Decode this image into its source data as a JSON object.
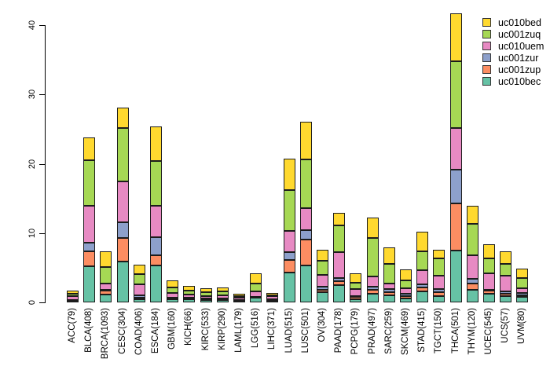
{
  "figure": {
    "background": "#ffffff",
    "text_color": "#000000",
    "bar_border_color": "#1c1c1c"
  },
  "y_axis": {
    "ticks": [
      "0",
      "10",
      "20",
      "30",
      "40"
    ],
    "tick_values": [
      0,
      10,
      20,
      30,
      40
    ]
  },
  "legend": {
    "position": "top-right",
    "items": [
      {
        "label": "uc010bed",
        "color": "#FFD92F"
      },
      {
        "label": "uc001zuq",
        "color": "#A6D854"
      },
      {
        "label": "uc010uem",
        "color": "#E78AC3"
      },
      {
        "label": "uc001zur",
        "color": "#8DA0CB"
      },
      {
        "label": "uc001zup",
        "color": "#FC8D62"
      },
      {
        "label": "uc010bec",
        "color": "#66C2A5"
      }
    ]
  },
  "chart_data": {
    "type": "bar",
    "stacked": true,
    "title": "",
    "xlabel": "",
    "ylabel": "",
    "ylim": [
      0,
      40
    ],
    "grid": false,
    "legend_position": "top-right",
    "categories": [
      "ACC(79)",
      "BLCA(408)",
      "BRCA(1093)",
      "CESC(304)",
      "COAD(406)",
      "ESCA(184)",
      "GBM(160)",
      "KICH(66)",
      "KIRC(533)",
      "KIRP(290)",
      "LAML(179)",
      "LGG(516)",
      "LIHC(371)",
      "LUAD(515)",
      "LUSC(501)",
      "OV(304)",
      "PAAD(178)",
      "PCPG(179)",
      "PRAD(497)",
      "SARC(259)",
      "SKCM(469)",
      "STAD(415)",
      "TGCT(150)",
      "THCA(501)",
      "THYM(120)",
      "UCEC(545)",
      "UCS(57)",
      "UVM(80)"
    ],
    "series": [
      {
        "name": "uc010bec",
        "color": "#66C2A5",
        "values": [
          0.2,
          5.2,
          1.1,
          5.9,
          0.4,
          5.3,
          0.5,
          0.45,
          0.45,
          0.4,
          0.25,
          0.7,
          0.3,
          4.3,
          5.3,
          1.5,
          2.5,
          0.45,
          1.3,
          1.0,
          0.6,
          1.6,
          0.95,
          7.5,
          1.8,
          1.25,
          0.85,
          0.75
        ]
      },
      {
        "name": "uc001zup",
        "color": "#FC8D62",
        "values": [
          0.05,
          2.2,
          0.6,
          3.4,
          0.3,
          1.5,
          0.1,
          0.1,
          0.05,
          0.1,
          0.05,
          0.05,
          0.05,
          1.8,
          3.8,
          0.3,
          0.6,
          0.45,
          0.55,
          0.45,
          0.35,
          0.5,
          0.5,
          6.8,
          0.9,
          0.5,
          0.4,
          0.25
        ]
      },
      {
        "name": "uc001zur",
        "color": "#8DA0CB",
        "values": [
          0.05,
          1.2,
          0.1,
          2.3,
          0.3,
          2.6,
          0.1,
          0.1,
          0.05,
          0.1,
          0.05,
          0.05,
          0.05,
          1.2,
          1.3,
          0.5,
          0.4,
          0.05,
          0.4,
          0.45,
          0.35,
          0.5,
          0.5,
          4.9,
          0.7,
          0.1,
          0.35,
          0.35
        ]
      },
      {
        "name": "uc010uem",
        "color": "#E78AC3",
        "values": [
          0.55,
          5.3,
          0.9,
          5.8,
          1.6,
          4.5,
          0.65,
          0.45,
          0.35,
          0.4,
          0.3,
          0.8,
          0.45,
          3.0,
          3.2,
          1.7,
          3.8,
          0.95,
          1.5,
          0.8,
          0.75,
          2.0,
          1.9,
          6.0,
          3.4,
          2.35,
          2.3,
          0.7
        ]
      },
      {
        "name": "uc001zuq",
        "color": "#A6D854",
        "values": [
          0.4,
          6.6,
          2.4,
          7.7,
          1.5,
          6.5,
          0.85,
          0.65,
          0.55,
          0.55,
          0.3,
          1.1,
          0.2,
          5.9,
          7.0,
          2.05,
          3.8,
          0.95,
          5.5,
          2.9,
          1.15,
          2.8,
          2.5,
          9.6,
          4.5,
          2.15,
          1.6,
          1.5
        ]
      },
      {
        "name": "uc010bed",
        "color": "#FFD92F",
        "values": [
          0.5,
          3.3,
          2.3,
          3.0,
          1.3,
          5.0,
          1.0,
          0.65,
          0.55,
          0.6,
          0.35,
          1.45,
          0.3,
          4.5,
          5.5,
          1.55,
          1.8,
          1.3,
          3.0,
          2.3,
          1.6,
          2.8,
          1.2,
          6.9,
          2.6,
          2.0,
          1.9,
          1.3
        ]
      }
    ]
  }
}
